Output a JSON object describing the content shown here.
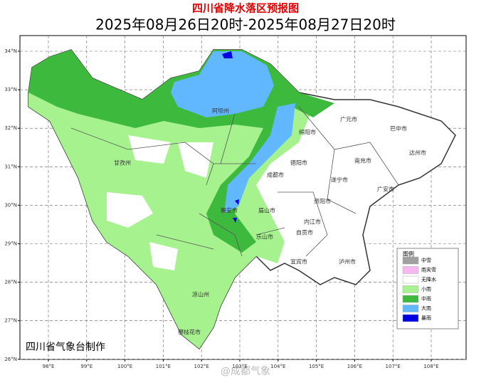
{
  "header": {
    "title": "四川省降水落区预报图",
    "subtitle": "2025年08月26日20时-2025年08月27日20时"
  },
  "map": {
    "lat_ticks": [
      {
        "value": 34,
        "label": "34°N"
      },
      {
        "value": 33,
        "label": "33°N"
      },
      {
        "value": 32,
        "label": "32°N"
      },
      {
        "value": 31,
        "label": "31°N"
      },
      {
        "value": 30,
        "label": "30°N"
      },
      {
        "value": 29,
        "label": "29°N"
      },
      {
        "value": 28,
        "label": "28°N"
      },
      {
        "value": 27,
        "label": "27°N"
      },
      {
        "value": 26,
        "label": "26°N"
      }
    ],
    "lon_ticks": [
      {
        "value": 98,
        "label": "98°E"
      },
      {
        "value": 99,
        "label": "99°E"
      },
      {
        "value": 100,
        "label": "100°E"
      },
      {
        "value": 101,
        "label": "101°E"
      },
      {
        "value": 102,
        "label": "102°E"
      },
      {
        "value": 103,
        "label": "103°E"
      },
      {
        "value": 104,
        "label": "104°E"
      },
      {
        "value": 105,
        "label": "105°E"
      },
      {
        "value": 106,
        "label": "106°E"
      },
      {
        "value": 107,
        "label": "107°E"
      },
      {
        "value": 108,
        "label": "108°E"
      }
    ],
    "cities": [
      "阿坝州",
      "甘孜州",
      "广元市",
      "巴中市",
      "绵阳市",
      "达州市",
      "南充市",
      "德阳市",
      "成都市",
      "广安市",
      "遂宁市",
      "雅安市",
      "眉山市",
      "资阳市",
      "内江市",
      "乐山市",
      "自贡市",
      "宜宾市",
      "泸州市",
      "凉山州",
      "攀枝花市"
    ]
  },
  "legend": {
    "title": "图例",
    "items": [
      {
        "label": "中雪",
        "color": "#a0a0a0"
      },
      {
        "label": "雨夹雪",
        "color": "#f5b8f0"
      },
      {
        "label": "无降水",
        "color": "#ffffff"
      },
      {
        "label": "小雨",
        "color": "#a6f28f"
      },
      {
        "label": "中雨",
        "color": "#3dba3d"
      },
      {
        "label": "大雨",
        "color": "#61b8ff"
      },
      {
        "label": "暴雨",
        "color": "#0000e1"
      }
    ]
  },
  "footer": {
    "credit": "四川省气象台制作"
  },
  "watermark": "@成都气象"
}
